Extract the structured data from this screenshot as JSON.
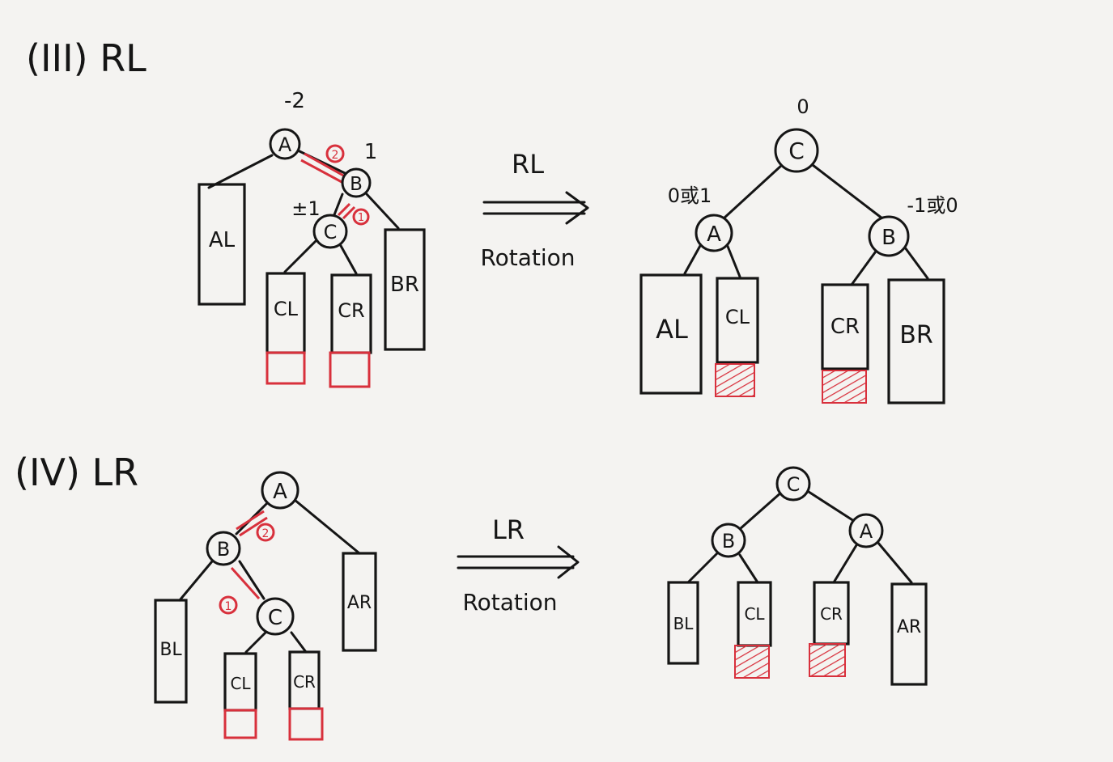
{
  "section3": {
    "heading": "(III) RL",
    "before": {
      "root": "A",
      "root_balance": "-2",
      "node_b": "B",
      "node_b_balance": "1",
      "node_c": "C",
      "node_c_balance": "±1",
      "order_1": "1",
      "order_2": "2",
      "subtrees": [
        "AL",
        "CL",
        "CR",
        "BR"
      ]
    },
    "arrow_top": "RL",
    "arrow_bottom": "Rotation",
    "after": {
      "root": "C",
      "root_balance": "0",
      "left": "A",
      "left_balance": "0或1",
      "right": "B",
      "right_balance": "-1或0",
      "subtrees": [
        "AL",
        "CL",
        "CR",
        "BR"
      ]
    }
  },
  "section4": {
    "heading": "(IV) LR",
    "before": {
      "root": "A",
      "node_b": "B",
      "node_c": "C",
      "order_1": "1",
      "order_2": "2",
      "subtrees": [
        "BL",
        "CL",
        "CR",
        "AR"
      ]
    },
    "arrow_top": "LR",
    "arrow_bottom": "Rotation",
    "after": {
      "root": "C",
      "left": "B",
      "right": "A",
      "subtrees": [
        "BL",
        "CL",
        "CR",
        "AR"
      ]
    }
  }
}
